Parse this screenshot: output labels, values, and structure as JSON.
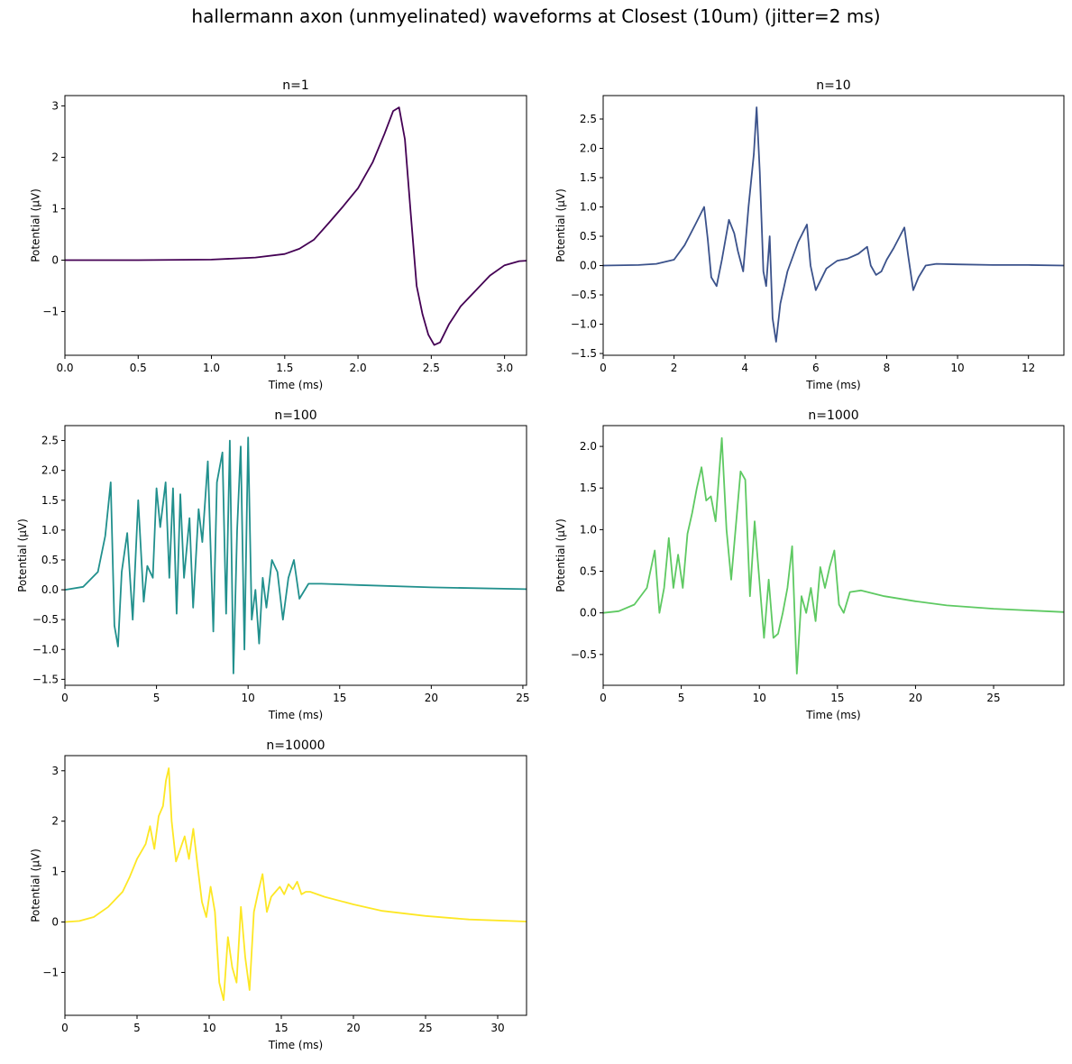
{
  "title": "hallermann axon (unmyelinated) waveforms at Closest (10um) (jitter=2 ms)",
  "chart_data": [
    {
      "type": "line",
      "title": "n=1",
      "xlabel": "Time (ms)",
      "ylabel": "Potential (µV)",
      "color": "#440154",
      "xlim": [
        0,
        3.15
      ],
      "ylim": [
        -1.85,
        3.2
      ],
      "xticks": [
        0,
        0.5,
        1.0,
        1.5,
        2.0,
        2.5,
        3.0
      ],
      "xtick_labels": [
        "0.0",
        "0.5",
        "1.0",
        "1.5",
        "2.0",
        "2.5",
        "3.0"
      ],
      "yticks": [
        -1,
        0,
        1,
        2,
        3
      ],
      "ytick_labels": [
        "−1",
        "0",
        "1",
        "2",
        "3"
      ],
      "x": [
        0,
        0.5,
        1.0,
        1.3,
        1.5,
        1.6,
        1.7,
        1.8,
        1.9,
        2.0,
        2.1,
        2.18,
        2.24,
        2.28,
        2.32,
        2.36,
        2.4,
        2.44,
        2.48,
        2.52,
        2.56,
        2.62,
        2.7,
        2.8,
        2.9,
        3.0,
        3.1,
        3.15
      ],
      "y": [
        0,
        0,
        0.01,
        0.05,
        0.12,
        0.22,
        0.4,
        0.72,
        1.05,
        1.4,
        1.9,
        2.45,
        2.9,
        2.97,
        2.35,
        0.9,
        -0.5,
        -1.05,
        -1.45,
        -1.65,
        -1.6,
        -1.25,
        -0.9,
        -0.6,
        -0.3,
        -0.1,
        -0.02,
        -0.01
      ]
    },
    {
      "type": "line",
      "title": "n=10",
      "xlabel": "Time (ms)",
      "ylabel": "Potential (µV)",
      "color": "#3b528b",
      "xlim": [
        0,
        13
      ],
      "ylim": [
        -1.53,
        2.9
      ],
      "xticks": [
        0,
        2,
        4,
        6,
        8,
        10,
        12
      ],
      "xtick_labels": [
        "0",
        "2",
        "4",
        "6",
        "8",
        "10",
        "12"
      ],
      "yticks": [
        -1.5,
        -1.0,
        -0.5,
        0.0,
        0.5,
        1.0,
        1.5,
        2.0,
        2.5
      ],
      "ytick_labels": [
        "−1.5",
        "−1.0",
        "−0.5",
        "0.0",
        "0.5",
        "1.0",
        "1.5",
        "2.0",
        "2.5"
      ],
      "x": [
        0,
        1,
        1.5,
        2.0,
        2.3,
        2.6,
        2.85,
        2.95,
        3.05,
        3.2,
        3.35,
        3.55,
        3.7,
        3.8,
        3.95,
        4.1,
        4.25,
        4.33,
        4.42,
        4.52,
        4.6,
        4.7,
        4.78,
        4.88,
        5.0,
        5.2,
        5.5,
        5.75,
        5.85,
        6.0,
        6.3,
        6.6,
        6.9,
        7.2,
        7.45,
        7.55,
        7.7,
        7.85,
        8.0,
        8.2,
        8.5,
        8.6,
        8.75,
        8.9,
        9.1,
        9.4,
        10,
        11,
        12,
        13
      ],
      "y": [
        0,
        0.01,
        0.03,
        0.1,
        0.35,
        0.7,
        1.0,
        0.45,
        -0.2,
        -0.35,
        0.1,
        0.78,
        0.55,
        0.25,
        -0.1,
        1.0,
        1.9,
        2.7,
        1.6,
        -0.1,
        -0.35,
        0.5,
        -0.9,
        -1.3,
        -0.65,
        -0.1,
        0.4,
        0.7,
        0.0,
        -0.42,
        -0.05,
        0.08,
        0.12,
        0.2,
        0.32,
        0.0,
        -0.16,
        -0.1,
        0.1,
        0.3,
        0.65,
        0.2,
        -0.42,
        -0.2,
        0.0,
        0.03,
        0.02,
        0.01,
        0.01,
        0.0
      ]
    },
    {
      "type": "line",
      "title": "n=100",
      "xlabel": "Time (ms)",
      "ylabel": "Potential (µV)",
      "color": "#21908d",
      "xlim": [
        0,
        25.2
      ],
      "ylim": [
        -1.6,
        2.75
      ],
      "xticks": [
        0,
        5,
        10,
        15,
        20,
        25
      ],
      "xtick_labels": [
        "0",
        "5",
        "10",
        "15",
        "20",
        "25"
      ],
      "yticks": [
        -1.5,
        -1.0,
        -0.5,
        0.0,
        0.5,
        1.0,
        1.5,
        2.0,
        2.5
      ],
      "ytick_labels": [
        "−1.5",
        "−1.0",
        "−0.5",
        "0.0",
        "0.5",
        "1.0",
        "1.5",
        "2.0",
        "2.5"
      ],
      "x": [
        0,
        1,
        1.8,
        2.2,
        2.5,
        2.7,
        2.9,
        3.1,
        3.4,
        3.7,
        4.0,
        4.3,
        4.5,
        4.8,
        5.0,
        5.2,
        5.5,
        5.7,
        5.9,
        6.1,
        6.3,
        6.5,
        6.8,
        7.0,
        7.3,
        7.5,
        7.8,
        8.1,
        8.3,
        8.6,
        8.8,
        9.0,
        9.2,
        9.4,
        9.6,
        9.8,
        10.0,
        10.2,
        10.4,
        10.6,
        10.8,
        11.0,
        11.3,
        11.6,
        11.9,
        12.2,
        12.5,
        12.8,
        13.3,
        14,
        16,
        20,
        25.2
      ],
      "y": [
        0,
        0.05,
        0.3,
        0.9,
        1.8,
        -0.6,
        -0.95,
        0.3,
        0.95,
        -0.5,
        1.5,
        -0.2,
        0.4,
        0.2,
        1.7,
        1.05,
        1.8,
        0.2,
        1.7,
        -0.4,
        1.6,
        0.2,
        1.2,
        -0.3,
        1.35,
        0.8,
        2.15,
        -0.7,
        1.8,
        2.3,
        -0.4,
        2.5,
        -1.4,
        1.0,
        2.4,
        -1.0,
        2.55,
        -0.5,
        0.0,
        -0.9,
        0.2,
        -0.3,
        0.5,
        0.3,
        -0.5,
        0.2,
        0.5,
        -0.15,
        0.1,
        0.1,
        0.08,
        0.04,
        0.01
      ]
    },
    {
      "type": "line",
      "title": "n=1000",
      "xlabel": "Time (ms)",
      "ylabel": "Potential (µV)",
      "color": "#5ec962",
      "xlim": [
        0,
        29.5
      ],
      "ylim": [
        -0.87,
        2.25
      ],
      "xticks": [
        0,
        5,
        10,
        15,
        20,
        25
      ],
      "xtick_labels": [
        "0",
        "5",
        "10",
        "15",
        "20",
        "25"
      ],
      "yticks": [
        -0.5,
        0.0,
        0.5,
        1.0,
        1.5,
        2.0
      ],
      "ytick_labels": [
        "−0.5",
        "0.0",
        "0.5",
        "1.0",
        "1.5",
        "2.0"
      ],
      "x": [
        0,
        1,
        2,
        2.8,
        3.3,
        3.6,
        3.9,
        4.2,
        4.5,
        4.8,
        5.1,
        5.4,
        5.7,
        6.0,
        6.3,
        6.6,
        6.9,
        7.2,
        7.6,
        7.9,
        8.2,
        8.5,
        8.8,
        9.1,
        9.4,
        9.7,
        10.0,
        10.3,
        10.6,
        10.9,
        11.2,
        11.5,
        11.8,
        12.1,
        12.4,
        12.7,
        13.0,
        13.3,
        13.6,
        13.9,
        14.2,
        14.5,
        14.8,
        15.1,
        15.4,
        15.8,
        16.5,
        18,
        20,
        22,
        25,
        29.5
      ],
      "y": [
        0,
        0.02,
        0.1,
        0.3,
        0.75,
        0.0,
        0.3,
        0.9,
        0.3,
        0.7,
        0.3,
        0.95,
        1.2,
        1.5,
        1.75,
        1.35,
        1.4,
        1.1,
        2.1,
        1.0,
        0.4,
        1.05,
        1.7,
        1.6,
        0.2,
        1.1,
        0.4,
        -0.3,
        0.4,
        -0.3,
        -0.25,
        0.0,
        0.3,
        0.8,
        -0.73,
        0.2,
        0.0,
        0.3,
        -0.1,
        0.55,
        0.3,
        0.55,
        0.75,
        0.1,
        0.0,
        0.25,
        0.27,
        0.2,
        0.14,
        0.09,
        0.05,
        0.01
      ]
    },
    {
      "type": "line",
      "title": "n=10000",
      "xlabel": "Time (ms)",
      "ylabel": "Potential (µV)",
      "color": "#fde725",
      "xlim": [
        0,
        32
      ],
      "ylim": [
        -1.85,
        3.3
      ],
      "xticks": [
        0,
        5,
        10,
        15,
        20,
        25,
        30
      ],
      "xtick_labels": [
        "0",
        "5",
        "10",
        "15",
        "20",
        "25",
        "30"
      ],
      "yticks": [
        -1,
        0,
        1,
        2,
        3
      ],
      "ytick_labels": [
        "−1",
        "0",
        "1",
        "2",
        "3"
      ],
      "x": [
        0,
        1,
        2,
        3,
        4,
        4.5,
        5.0,
        5.3,
        5.6,
        5.9,
        6.2,
        6.5,
        6.8,
        7.0,
        7.2,
        7.4,
        7.7,
        8.0,
        8.3,
        8.6,
        8.9,
        9.2,
        9.5,
        9.8,
        10.1,
        10.4,
        10.7,
        11.0,
        11.3,
        11.6,
        11.9,
        12.2,
        12.5,
        12.8,
        13.1,
        13.4,
        13.7,
        14.0,
        14.3,
        14.6,
        14.9,
        15.2,
        15.5,
        15.8,
        16.1,
        16.4,
        16.7,
        17.0,
        18,
        20,
        22,
        25,
        28,
        32
      ],
      "y": [
        0,
        0.02,
        0.1,
        0.3,
        0.6,
        0.9,
        1.25,
        1.4,
        1.55,
        1.9,
        1.45,
        2.1,
        2.3,
        2.8,
        3.05,
        2.0,
        1.2,
        1.45,
        1.7,
        1.25,
        1.85,
        1.1,
        0.4,
        0.1,
        0.7,
        0.2,
        -1.2,
        -1.55,
        -0.3,
        -0.9,
        -1.2,
        0.3,
        -0.7,
        -1.35,
        0.2,
        0.6,
        0.95,
        0.2,
        0.5,
        0.6,
        0.7,
        0.55,
        0.75,
        0.65,
        0.8,
        0.55,
        0.6,
        0.6,
        0.5,
        0.35,
        0.22,
        0.12,
        0.05,
        0.01
      ]
    }
  ]
}
